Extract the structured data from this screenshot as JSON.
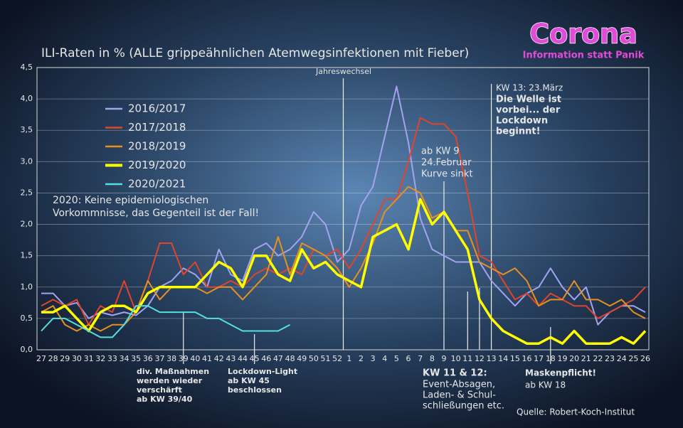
{
  "chart_data": {
    "type": "line",
    "title": "ILI-Raten in % (ALLE grippeähnlichen Atemwegsinfektionen mit Fieber)",
    "categories": [
      "27",
      "28",
      "29",
      "30",
      "31",
      "32",
      "33",
      "34",
      "35",
      "36",
      "37",
      "38",
      "39",
      "40",
      "41",
      "42",
      "43",
      "44",
      "45",
      "46",
      "47",
      "48",
      "49",
      "50",
      "51",
      "52",
      "1",
      "2",
      "3",
      "4",
      "5",
      "6",
      "7",
      "8",
      "9",
      "10",
      "11",
      "12",
      "13",
      "14",
      "15",
      "16",
      "17",
      "18",
      "19",
      "20",
      "21",
      "22",
      "23",
      "24",
      "25",
      "26"
    ],
    "series": [
      {
        "name": "2016/2017",
        "color": "#a3a3f0",
        "values": [
          0.9,
          0.9,
          0.7,
          0.75,
          0.5,
          0.6,
          0.55,
          0.6,
          0.55,
          0.7,
          1.0,
          1.1,
          1.3,
          1.2,
          1.0,
          1.6,
          1.2,
          1.1,
          1.6,
          1.7,
          1.5,
          1.6,
          1.8,
          2.2,
          2.0,
          1.4,
          1.6,
          2.3,
          2.6,
          3.4,
          4.2,
          3.3,
          2.1,
          1.6,
          1.5,
          1.4,
          1.4,
          1.4,
          1.1,
          0.9,
          0.7,
          0.9,
          1.0,
          1.3,
          1.0,
          0.8,
          1.0,
          0.4,
          0.6,
          0.7,
          0.7,
          0.6
        ]
      },
      {
        "name": "2017/2018",
        "color": "#e0442a",
        "values": [
          0.7,
          0.8,
          0.7,
          0.8,
          0.4,
          0.7,
          0.6,
          1.1,
          0.6,
          1.1,
          1.7,
          1.7,
          1.2,
          1.4,
          1.0,
          1.0,
          1.1,
          1.0,
          1.2,
          1.3,
          1.2,
          1.3,
          1.2,
          1.6,
          1.5,
          1.6,
          1.3,
          1.6,
          2.0,
          2.4,
          2.4,
          3.0,
          3.7,
          3.6,
          3.6,
          3.4,
          2.5,
          1.5,
          1.4,
          1.1,
          0.8,
          0.9,
          0.7,
          0.9,
          0.8,
          0.7,
          0.7,
          0.5,
          0.6,
          0.7,
          0.8,
          1.0
        ]
      },
      {
        "name": "2018/2019",
        "color": "#e8901e",
        "values": [
          0.6,
          0.7,
          0.4,
          0.3,
          0.4,
          0.3,
          0.4,
          0.4,
          0.6,
          1.1,
          0.8,
          1.0,
          1.0,
          1.0,
          0.9,
          1.0,
          1.0,
          0.8,
          1.0,
          1.2,
          1.8,
          1.2,
          1.7,
          1.6,
          1.5,
          1.3,
          1.0,
          1.3,
          1.7,
          2.2,
          2.4,
          2.6,
          2.5,
          2.1,
          2.2,
          1.9,
          1.9,
          1.4,
          1.3,
          1.2,
          1.3,
          1.1,
          0.7,
          0.8,
          0.8,
          1.1,
          0.8,
          0.8,
          0.7,
          0.8,
          0.6,
          0.5
        ]
      },
      {
        "name": "2019/2020",
        "color": "#ffff00",
        "values": [
          0.6,
          0.6,
          0.7,
          0.5,
          0.3,
          0.6,
          0.7,
          0.7,
          0.6,
          0.9,
          1.0,
          1.0,
          1.0,
          1.0,
          1.2,
          1.4,
          1.3,
          1.0,
          1.5,
          1.5,
          1.2,
          1.1,
          1.6,
          1.3,
          1.4,
          1.2,
          1.1,
          1.0,
          1.8,
          1.9,
          2.0,
          1.6,
          2.4,
          2.0,
          2.2,
          1.9,
          1.6,
          0.8,
          0.5,
          0.3,
          0.2,
          0.1,
          0.1,
          0.2,
          0.1,
          0.3,
          0.1,
          0.1,
          0.1,
          0.2,
          0.1,
          0.3
        ]
      },
      {
        "name": "2020/2021",
        "color": "#55e0e0",
        "values": [
          0.3,
          0.5,
          0.5,
          0.4,
          0.3,
          0.2,
          0.2,
          0.4,
          0.7,
          0.7,
          0.6,
          0.6,
          0.6,
          0.6,
          0.5,
          0.5,
          0.4,
          0.3,
          0.3,
          0.3,
          0.3,
          0.4,
          null,
          null,
          null,
          null,
          null,
          null,
          null,
          null,
          null,
          null,
          null,
          null,
          null,
          null,
          null,
          null,
          null,
          null,
          null,
          null,
          null,
          null,
          null,
          null,
          null,
          null,
          null,
          null,
          null,
          null
        ]
      }
    ],
    "ylim": [
      0,
      4.5
    ],
    "yticks": [
      {
        "value": 0,
        "label": "0,0"
      },
      {
        "value": 0.5,
        "label": "0,5"
      },
      {
        "value": 1,
        "label": "1,0"
      },
      {
        "value": 1.5,
        "label": "1,5"
      },
      {
        "value": 2,
        "label": "2,0"
      },
      {
        "value": 2.5,
        "label": "2,5"
      },
      {
        "value": 3,
        "label": "3,0"
      },
      {
        "value": 3.5,
        "label": "3,5"
      },
      {
        "value": 4,
        "label": "4,0"
      },
      {
        "value": 4.5,
        "label": "4,5"
      }
    ],
    "grid": true,
    "legend": "upper-left",
    "annotations": [
      [
        "Jahreswechsel"
      ],
      [
        "ab KW 9",
        "24.Februar",
        "Kurve sinkt"
      ],
      [
        "KW 13: 23.März"
      ],
      [
        "Die Welle ist",
        "vorbei... der",
        "Lockdown",
        "beginnt!"
      ],
      [
        "2020: Keine epidemiologischen",
        "Vorkommnisse, das Gegenteil ist der Fall!"
      ],
      [
        "div. Maßnahmen",
        "werden wieder",
        "verschärft",
        "ab KW 39/40"
      ],
      [
        "Lockdown-Light",
        "ab KW 45",
        "beschlossen"
      ],
      [
        "KW 11 & 12:"
      ],
      [
        "Event-Absagen,",
        "Laden- & Schul-",
        "schließungen etc."
      ],
      [
        "Maskenpflicht!"
      ],
      [
        "ab KW 18"
      ],
      [
        "Quelle: Robert-Koch-Institut"
      ]
    ]
  },
  "logo": {
    "title": "Corona",
    "subtitle": "Information statt Panik"
  }
}
